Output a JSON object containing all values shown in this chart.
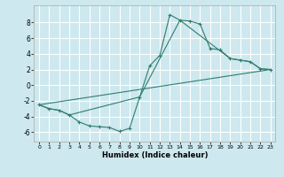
{
  "xlabel": "Humidex (Indice chaleur)",
  "bg_color": "#cde8ee",
  "grid_color": "#ffffff",
  "line_color": "#2e7d6e",
  "xlim": [
    -0.5,
    23.5
  ],
  "ylim": [
    -7.2,
    10.2
  ],
  "yticks": [
    -6,
    -4,
    -2,
    0,
    2,
    4,
    6,
    8
  ],
  "xticks": [
    0,
    1,
    2,
    3,
    4,
    5,
    6,
    7,
    8,
    9,
    10,
    11,
    12,
    13,
    14,
    15,
    16,
    17,
    18,
    19,
    20,
    21,
    22,
    23
  ],
  "line1_x": [
    0,
    1,
    2,
    3,
    4,
    5,
    6,
    7,
    8,
    9,
    10,
    11,
    12,
    13,
    14,
    15,
    16,
    17,
    18,
    19,
    20,
    21,
    22,
    23
  ],
  "line1_y": [
    -2.5,
    -3.0,
    -3.2,
    -3.8,
    -4.7,
    -5.2,
    -5.3,
    -5.4,
    -5.9,
    -5.5,
    -1.5,
    2.5,
    3.8,
    9.0,
    8.3,
    8.2,
    7.8,
    4.7,
    4.5,
    3.4,
    3.2,
    3.0,
    2.1,
    2.0
  ],
  "line2_x": [
    0,
    1,
    2,
    3,
    10,
    14,
    19,
    20,
    21,
    22,
    23
  ],
  "line2_y": [
    -2.5,
    -3.0,
    -3.2,
    -3.8,
    -1.5,
    8.3,
    3.4,
    3.2,
    3.0,
    2.1,
    2.0
  ],
  "line3_x": [
    0,
    23
  ],
  "line3_y": [
    -2.5,
    2.0
  ]
}
